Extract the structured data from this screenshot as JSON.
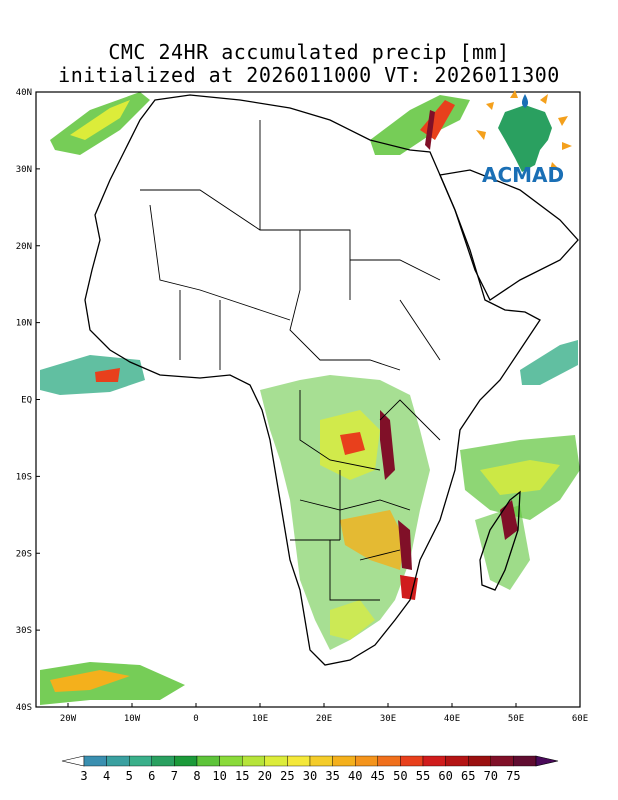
{
  "title": {
    "line1": "CMC 24HR accumulated precip [mm]",
    "line2": "initialized at 2026011000 VT: 2026011300"
  },
  "logo": {
    "text": "ACMAD"
  },
  "axes": {
    "lat_labels": [
      {
        "value": 40,
        "text": "40N"
      },
      {
        "value": 30,
        "text": "30N"
      },
      {
        "value": 20,
        "text": "20N"
      },
      {
        "value": 10,
        "text": "10N"
      },
      {
        "value": 0,
        "text": "EQ"
      },
      {
        "value": -10,
        "text": "10S"
      },
      {
        "value": -20,
        "text": "20S"
      },
      {
        "value": -30,
        "text": "30S"
      },
      {
        "value": -40,
        "text": "40S"
      }
    ],
    "lon_labels": [
      {
        "value": -20,
        "text": "20W"
      },
      {
        "value": -10,
        "text": "10W"
      },
      {
        "value": 0,
        "text": "0"
      },
      {
        "value": 10,
        "text": "10E"
      },
      {
        "value": 20,
        "text": "20E"
      },
      {
        "value": 30,
        "text": "30E"
      },
      {
        "value": 40,
        "text": "40E"
      },
      {
        "value": 50,
        "text": "50E"
      },
      {
        "value": 60,
        "text": "60E"
      }
    ],
    "lon_range": [
      -25,
      60
    ],
    "lat_range": [
      -40,
      40
    ]
  },
  "colorbar": {
    "labels": [
      "3",
      "4",
      "5",
      "6",
      "7",
      "8",
      "10",
      "15",
      "20",
      "25",
      "30",
      "35",
      "40",
      "45",
      "50",
      "55",
      "60",
      "65",
      "70",
      "75"
    ],
    "colors": [
      "#3a8fb0",
      "#3aa0a0",
      "#3aaf8a",
      "#2aa060",
      "#1c9a3a",
      "#5ec43a",
      "#8ada3a",
      "#b6e43a",
      "#dcec3a",
      "#f4e83a",
      "#f4cc2a",
      "#f4b01c",
      "#f4941c",
      "#f0701c",
      "#e8401c",
      "#d01c1c",
      "#b41414",
      "#9a1010",
      "#801028",
      "#600c30"
    ],
    "end_color": "#4a0a5a"
  }
}
